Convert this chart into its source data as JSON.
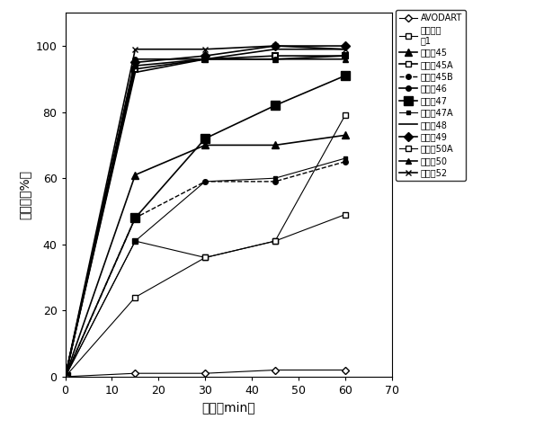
{
  "series": [
    {
      "label": "AVODART",
      "x": [
        0,
        15,
        30,
        45,
        60
      ],
      "y": [
        0,
        1,
        1,
        2,
        2
      ],
      "color": "black",
      "linestyle": "-",
      "marker": "D",
      "markersize": 4,
      "markerfacecolor": "white",
      "linewidth": 0.8
    },
    {
      "label": "比较实施\n例1",
      "x": [
        0,
        15,
        30,
        45,
        60
      ],
      "y": [
        0,
        41,
        36,
        41,
        79
      ],
      "color": "black",
      "linestyle": "-",
      "marker": "s",
      "markersize": 5,
      "markerfacecolor": "white",
      "linewidth": 0.8
    },
    {
      "label": "实施例45",
      "x": [
        0,
        15,
        30,
        45,
        60
      ],
      "y": [
        0,
        61,
        70,
        70,
        73
      ],
      "color": "black",
      "linestyle": "-",
      "marker": "^",
      "markersize": 6,
      "markerfacecolor": "black",
      "linewidth": 1.2
    },
    {
      "label": "实施例45A",
      "x": [
        0,
        15,
        30,
        45,
        60
      ],
      "y": [
        0,
        93,
        96,
        97,
        97
      ],
      "color": "black",
      "linestyle": "-",
      "marker": "s",
      "markersize": 5,
      "markerfacecolor": "white",
      "markeredgewidth": 1.5,
      "linewidth": 1.2
    },
    {
      "label": "实施例45B",
      "x": [
        0,
        15,
        30,
        45,
        60
      ],
      "y": [
        0,
        48,
        59,
        59,
        65
      ],
      "color": "black",
      "linestyle": "--",
      "marker": "o",
      "markersize": 4,
      "markerfacecolor": "black",
      "linewidth": 1.0
    },
    {
      "label": "实施例46",
      "x": [
        0,
        15,
        30,
        45,
        60
      ],
      "y": [
        0,
        96,
        96,
        96,
        97
      ],
      "color": "black",
      "linestyle": "-",
      "marker": "o",
      "markersize": 4,
      "markerfacecolor": "black",
      "linewidth": 1.2
    },
    {
      "label": "实施例47",
      "x": [
        0,
        15,
        30,
        45,
        60
      ],
      "y": [
        0,
        48,
        72,
        82,
        91
      ],
      "color": "black",
      "linestyle": "-",
      "marker": "s",
      "markersize": 7,
      "markerfacecolor": "black",
      "linewidth": 1.2
    },
    {
      "label": "实施例47A",
      "x": [
        0,
        15,
        30,
        45,
        60
      ],
      "y": [
        0,
        41,
        59,
        60,
        66
      ],
      "color": "black",
      "linestyle": "-",
      "marker": "s",
      "markersize": 3,
      "markerfacecolor": "black",
      "linewidth": 0.8
    },
    {
      "label": "实施例48",
      "x": [
        0,
        15,
        30,
        45,
        60
      ],
      "y": [
        0,
        92,
        96,
        99,
        99
      ],
      "color": "black",
      "linestyle": "-",
      "marker": "None",
      "markersize": 5,
      "markerfacecolor": "black",
      "linewidth": 1.2
    },
    {
      "label": "实施例49",
      "x": [
        0,
        15,
        30,
        45,
        60
      ],
      "y": [
        0,
        95,
        97,
        100,
        100
      ],
      "color": "black",
      "linestyle": "-",
      "marker": "D",
      "markersize": 5,
      "markerfacecolor": "black",
      "linewidth": 1.2
    },
    {
      "label": "实施例50A",
      "x": [
        0,
        15,
        30,
        45,
        60
      ],
      "y": [
        0,
        24,
        36,
        41,
        49
      ],
      "color": "black",
      "linestyle": "-",
      "marker": "s",
      "markersize": 5,
      "markerfacecolor": "white",
      "linewidth": 0.8
    },
    {
      "label": "实施例50",
      "x": [
        0,
        15,
        30,
        45,
        60
      ],
      "y": [
        0,
        94,
        96,
        96,
        96
      ],
      "color": "black",
      "linestyle": "-",
      "marker": "^",
      "markersize": 4,
      "markerfacecolor": "black",
      "linewidth": 1.2
    },
    {
      "label": "实施例52",
      "x": [
        0,
        15,
        30,
        45,
        60
      ],
      "y": [
        0,
        99,
        99,
        100,
        99
      ],
      "color": "black",
      "linestyle": "-",
      "marker": "x",
      "markersize": 5,
      "markerfacecolor": "black",
      "linewidth": 1.2
    }
  ],
  "xlabel": "时间（min）",
  "ylabel": "溶出度（%）",
  "xlim": [
    0,
    70
  ],
  "ylim": [
    0,
    110
  ],
  "xticks": [
    0,
    10,
    20,
    30,
    40,
    50,
    60,
    70
  ],
  "yticks": [
    0,
    20,
    40,
    60,
    80,
    100
  ],
  "background_color": "white",
  "legend_fontsize": 7.0,
  "axis_label_fontsize": 10,
  "tick_fontsize": 9
}
